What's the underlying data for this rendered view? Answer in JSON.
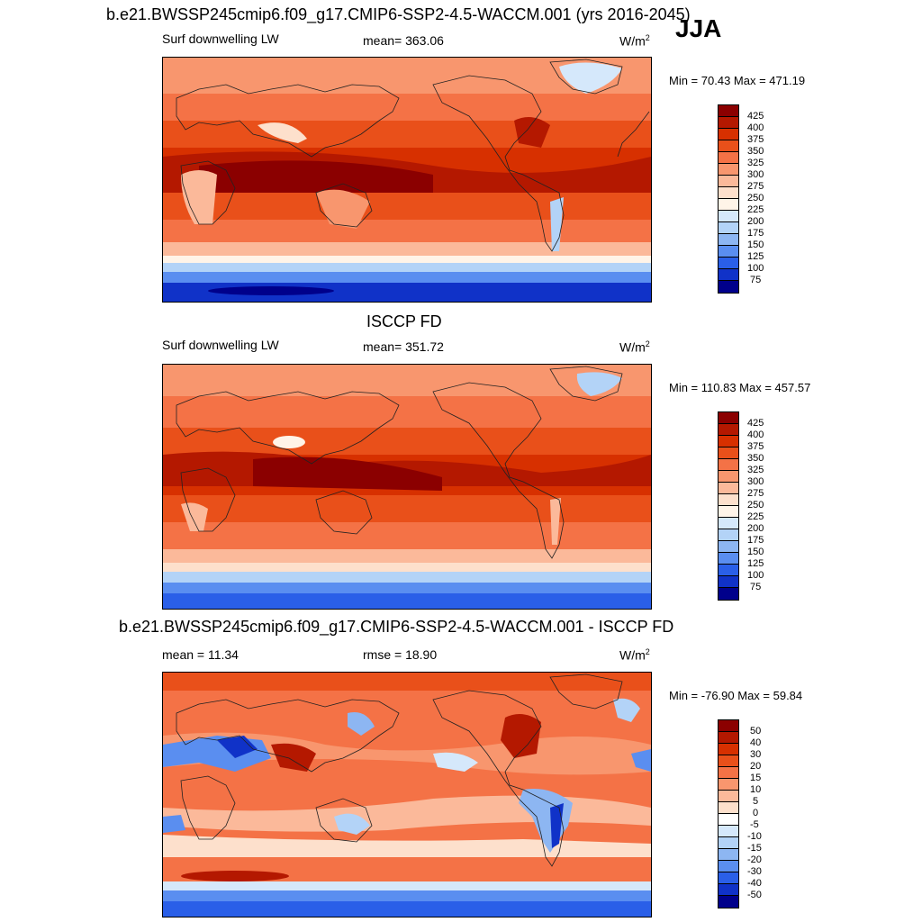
{
  "panel1": {
    "title": "b.e21.BWSSP245cmip6.f09_g17.CMIP6-SSP2-4.5-WACCM.001 (yrs 2016-2045)",
    "variable": "Surf downwelling LW",
    "mean": "mean= 363.06",
    "units_base": "W/m",
    "units_exp": "2",
    "minmax": "Min =  70.43 Max = 471.19",
    "colorbar_labels": [
      "425",
      "400",
      "375",
      "350",
      "325",
      "300",
      "275",
      "250",
      "225",
      "200",
      "175",
      "150",
      "125",
      "100",
      "75"
    ]
  },
  "season": "JJA",
  "panel2": {
    "title": "ISCCP FD",
    "variable": "Surf downwelling LW",
    "mean": "mean= 351.72",
    "units_base": "W/m",
    "units_exp": "2",
    "minmax": "Min = 110.83 Max = 457.57",
    "colorbar_labels": [
      "425",
      "400",
      "375",
      "350",
      "325",
      "300",
      "275",
      "250",
      "225",
      "200",
      "175",
      "150",
      "125",
      "100",
      "75"
    ]
  },
  "panel3": {
    "title": "b.e21.BWSSP245cmip6.f09_g17.CMIP6-SSP2-4.5-WACCM.001 - ISCCP FD",
    "mean": "mean =  11.34",
    "rmse": "rmse =  18.90",
    "units_base": "W/m",
    "units_exp": "2",
    "minmax": "Min = -76.90 Max =  59.84",
    "colorbar_labels": [
      "50",
      "40",
      "30",
      "20",
      "15",
      "10",
      "5",
      "0",
      "-5",
      "-10",
      "-15",
      "-20",
      "-30",
      "-40",
      "-50"
    ]
  },
  "colors": {
    "abs_scale": [
      "#8b0000",
      "#b41800",
      "#d73000",
      "#e9501a",
      "#f47246",
      "#f8966e",
      "#fbb99a",
      "#fde0cc",
      "#fff4e8",
      "#d5e8fb",
      "#b3d3f7",
      "#8db6f2",
      "#5a8ef0",
      "#2a5fe8",
      "#1032c8",
      "#00008b"
    ],
    "diff_scale": [
      "#8b0000",
      "#b41800",
      "#d73000",
      "#e9501a",
      "#f47246",
      "#f8966e",
      "#fbb99a",
      "#fde0cc",
      "#ffffff",
      "#d5e8fb",
      "#b3d3f7",
      "#8db6f2",
      "#5a8ef0",
      "#2a5fe8",
      "#1032c8",
      "#00008b"
    ]
  }
}
